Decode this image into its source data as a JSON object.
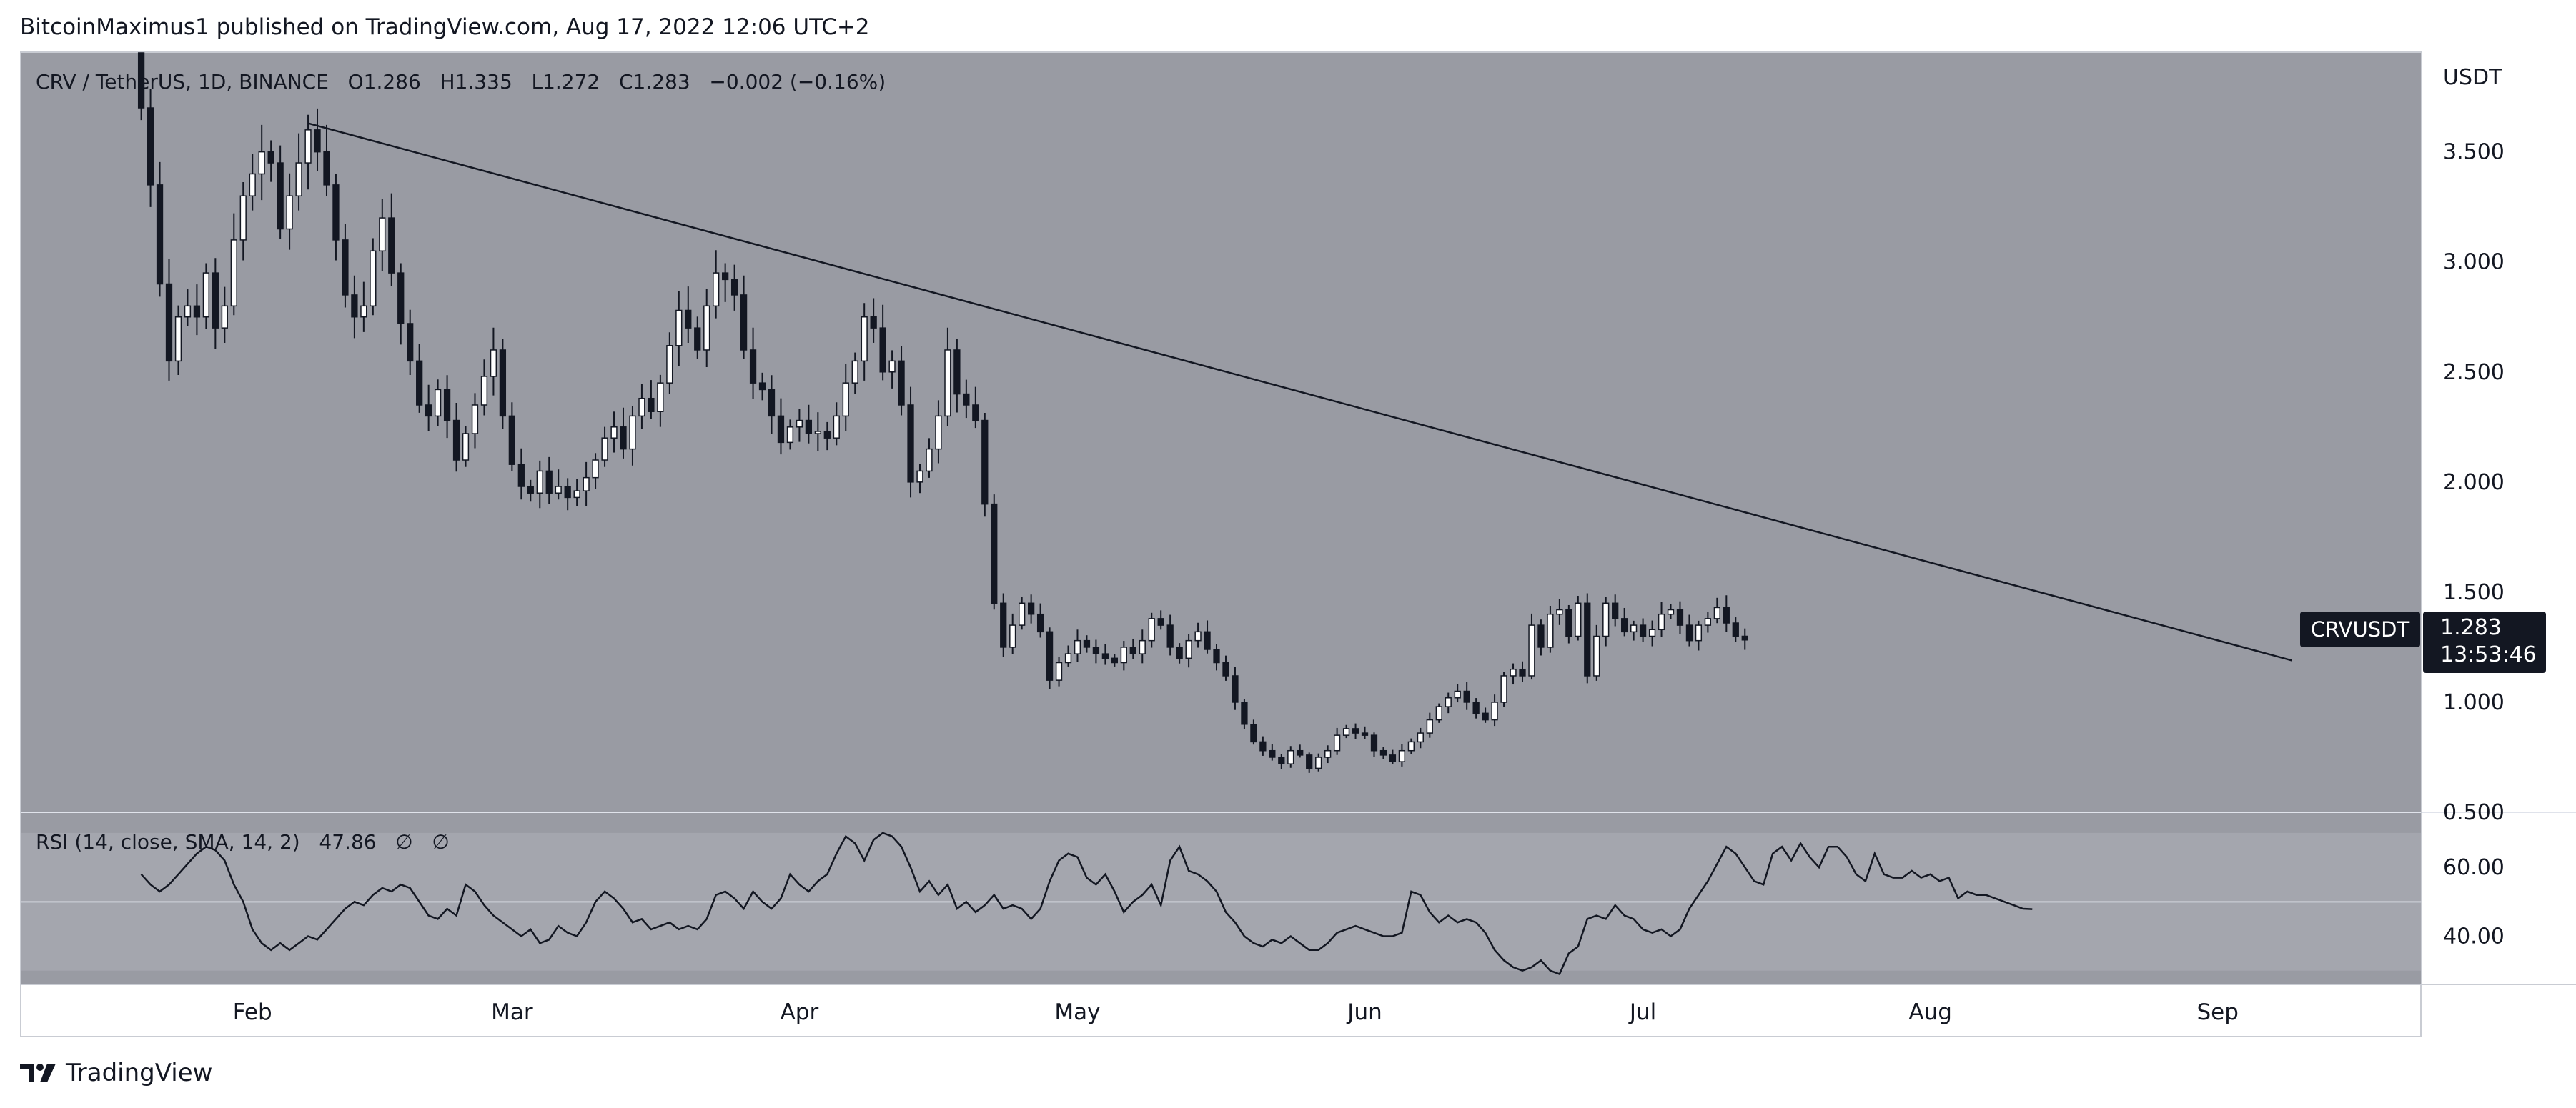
{
  "header": {
    "published_line": "BitcoinMaximus1 published on TradingView.com, Aug 17, 2022 12:06 UTC+2"
  },
  "legend": {
    "symbol": "CRV / TetherUS, 1D, BINANCE",
    "open_label": "O",
    "open": "1.286",
    "high_label": "H",
    "high": "1.335",
    "low_label": "L",
    "low": "1.272",
    "close_label": "C",
    "close": "1.283",
    "change": "−0.002 (−0.16%)"
  },
  "rsi_legend": {
    "label": "RSI (14, close, SMA, 14, 2)",
    "value": "47.86",
    "extra1": "∅",
    "extra2": "∅"
  },
  "price_tag": {
    "symbol": "CRVUSDT",
    "price": "1.283",
    "countdown": "13:53:46"
  },
  "footer": {
    "brand": "TradingView"
  },
  "colors": {
    "chart_bg": "#999ba3",
    "rsi_band": "#a4a6ae",
    "candle_up": "#ffffff",
    "candle_down": "#131722",
    "trendline": "#131722",
    "rsi_line": "#131722"
  },
  "chart_data": [
    {
      "type": "candlestick",
      "title": "CRV / TetherUS, 1D, BINANCE",
      "currency_label": "USDT",
      "y_ticks": [
        "3.500",
        "3.000",
        "2.500",
        "2.000",
        "1.500",
        "1.000",
        "0.500"
      ],
      "ylim": [
        0.5,
        3.95
      ],
      "x_ticks": [
        "Feb",
        "Mar",
        "Apr",
        "May",
        "Jun",
        "Jul",
        "Aug",
        "Sep"
      ],
      "x_tick_day_index": [
        12,
        40,
        71,
        101,
        132,
        162,
        193,
        224
      ],
      "xlim_days": [
        -13,
        246
      ],
      "series_close": [
        3.7,
        3.35,
        2.9,
        2.55,
        2.75,
        2.8,
        2.75,
        2.95,
        2.7,
        2.8,
        3.1,
        3.3,
        3.4,
        3.5,
        3.45,
        3.15,
        3.3,
        3.45,
        3.6,
        3.5,
        3.35,
        3.1,
        2.85,
        2.75,
        2.8,
        3.05,
        3.2,
        2.95,
        2.72,
        2.55,
        2.35,
        2.3,
        2.42,
        2.28,
        2.1,
        2.22,
        2.35,
        2.48,
        2.6,
        2.3,
        2.08,
        1.98,
        1.95,
        2.05,
        1.95,
        1.98,
        1.93,
        1.96,
        2.02,
        2.1,
        2.2,
        2.25,
        2.15,
        2.3,
        2.38,
        2.32,
        2.45,
        2.62,
        2.78,
        2.7,
        2.6,
        2.8,
        2.95,
        2.92,
        2.85,
        2.6,
        2.45,
        2.42,
        2.3,
        2.18,
        2.25,
        2.28,
        2.22,
        2.23,
        2.2,
        2.3,
        2.45,
        2.55,
        2.75,
        2.7,
        2.5,
        2.55,
        2.35,
        2.0,
        2.05,
        2.15,
        2.3,
        2.6,
        2.4,
        2.35,
        2.28,
        1.9,
        1.45,
        1.25,
        1.35,
        1.45,
        1.4,
        1.32,
        1.1,
        1.18,
        1.22,
        1.28,
        1.25,
        1.22,
        1.2,
        1.18,
        1.25,
        1.22,
        1.28,
        1.38,
        1.35,
        1.25,
        1.2,
        1.28,
        1.32,
        1.24,
        1.18,
        1.12,
        1.0,
        0.9,
        0.82,
        0.78,
        0.75,
        0.72,
        0.78,
        0.76,
        0.7,
        0.75,
        0.78,
        0.85,
        0.88,
        0.86,
        0.85,
        0.78,
        0.76,
        0.73,
        0.78,
        0.82,
        0.86,
        0.92,
        0.98,
        1.02,
        1.05,
        1.0,
        0.95,
        0.92,
        1.0,
        1.12,
        1.15,
        1.12,
        1.35,
        1.25,
        1.4,
        1.42,
        1.3,
        1.45,
        1.12,
        1.3,
        1.45,
        1.38,
        1.32,
        1.35,
        1.3,
        1.33,
        1.4,
        1.42,
        1.35,
        1.28,
        1.35,
        1.38,
        1.43,
        1.36,
        1.3,
        1.283
      ],
      "trendline": {
        "start": {
          "day": 18,
          "price": 3.63
        },
        "end": {
          "day": 232,
          "price": 1.19
        }
      }
    },
    {
      "type": "line",
      "title": "RSI (14, close, SMA, 14, 2)",
      "y_ticks": [
        "60.00",
        "40.00"
      ],
      "ylim": [
        26,
        76
      ],
      "band": [
        30,
        70
      ],
      "values": [
        58,
        55,
        53,
        55,
        58,
        61,
        64,
        66,
        65,
        62,
        55,
        50,
        42,
        38,
        36,
        38,
        36,
        38,
        40,
        39,
        42,
        45,
        48,
        50,
        49,
        52,
        54,
        53,
        55,
        54,
        50,
        46,
        45,
        48,
        46,
        55,
        53,
        49,
        46,
        44,
        42,
        40,
        42,
        38,
        39,
        43,
        41,
        40,
        44,
        50,
        53,
        51,
        48,
        44,
        45,
        42,
        43,
        44,
        42,
        43,
        42,
        45,
        52,
        53,
        51,
        48,
        53,
        50,
        48,
        51,
        58,
        55,
        53,
        56,
        58,
        64,
        69,
        67,
        62,
        68,
        70,
        69,
        66,
        60,
        53,
        56,
        52,
        55,
        48,
        50,
        47,
        49,
        52,
        48,
        49,
        48,
        45,
        48,
        56,
        62,
        64,
        63,
        57,
        55,
        58,
        53,
        47,
        50,
        52,
        55,
        49,
        62,
        66,
        59,
        58,
        56,
        53,
        47,
        44,
        40,
        38,
        37,
        39,
        38,
        40,
        38,
        36,
        36,
        38,
        41,
        42,
        43,
        42,
        41,
        40,
        40,
        41,
        53,
        52,
        47,
        44,
        46,
        44,
        45,
        44,
        41,
        36,
        33,
        31,
        30,
        31,
        33,
        30,
        29,
        35,
        37,
        45,
        46,
        45,
        49,
        46,
        45,
        42,
        41,
        42,
        40,
        42,
        48,
        52,
        56,
        61,
        66,
        64,
        60,
        56,
        55,
        64,
        66,
        62,
        67,
        63,
        60,
        66,
        66,
        63,
        58,
        56,
        64,
        58,
        57,
        57,
        59,
        57,
        58,
        56,
        57,
        51,
        53,
        52,
        52,
        51,
        50,
        49,
        48,
        47.86
      ]
    }
  ]
}
